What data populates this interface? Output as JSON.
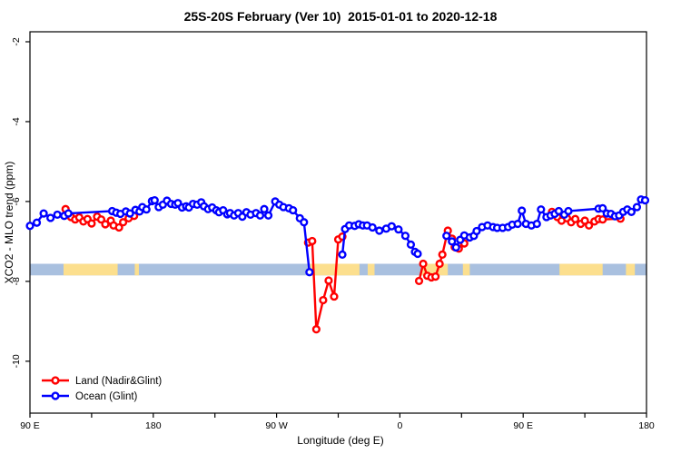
{
  "title": "25S-20S February (Ver 10)  2015-01-01 to 2020-12-18",
  "axes": {
    "x": {
      "label": "Longitude (deg E)",
      "ticks": [
        {
          "lon": 90,
          "label": "90 E"
        },
        {
          "lon": 135,
          "label": ""
        },
        {
          "lon": 180,
          "label": "180"
        },
        {
          "lon": 225,
          "label": ""
        },
        {
          "lon": 270,
          "label": "90 W"
        },
        {
          "lon": 315,
          "label": ""
        },
        {
          "lon": 360,
          "label": "0"
        },
        {
          "lon": 405,
          "label": ""
        },
        {
          "lon": 450,
          "label": "90 E"
        },
        {
          "lon": 495,
          "label": ""
        },
        {
          "lon": 540,
          "label": "180"
        }
      ]
    },
    "y": {
      "label": "XCO2 - MLO trend (ppm)",
      "ticks": [
        "-2",
        "-4",
        "-6",
        "-8",
        "-10"
      ],
      "tick_values": [
        -2,
        -4,
        -6,
        -8,
        -10
      ],
      "range": [
        -11.3,
        -1.75
      ]
    }
  },
  "legend": [
    {
      "label": "Land (Nadir&Glint)",
      "color": "#ff0000",
      "marker": "open-circle"
    },
    {
      "label": "Ocean (Glint)",
      "color": "#0000ff",
      "marker": "open-circle"
    }
  ],
  "chart_data": {
    "type": "line",
    "title": "25S-20S February (Ver 10)  2015-01-01 to 2020-12-18",
    "xlabel": "Longitude (deg E)",
    "ylabel": "XCO2 - MLO trend (ppm)",
    "x_unit": "extended longitude deg E (90 to 540, wraps 180/-180 at 180 and 0 at 360)",
    "xlim": [
      90,
      540
    ],
    "ylim": [
      -11.3,
      -1.75
    ],
    "grid": false,
    "legend_position": "bottom-left-inside",
    "land_ocean_band": {
      "y_top": -7.56,
      "y_bottom": -7.85,
      "ocean_color": "#a9c0df",
      "land_color": "#fcdf8e",
      "land_segments_lon": [
        [
          114.5,
          154
        ],
        [
          166.5,
          169.5
        ],
        [
          294.5,
          330.5
        ],
        [
          336.5,
          341.5
        ],
        [
          375.5,
          395
        ],
        [
          406,
          411
        ],
        [
          476.5,
          508
        ],
        [
          525,
          531.5
        ]
      ]
    },
    "series": [
      {
        "name": "Land (Nadir&Glint)",
        "color": "#ff0000",
        "segments": [
          [
            [
              116,
              -6.19
            ],
            [
              120,
              -6.39
            ],
            [
              123,
              -6.45
            ],
            [
              126,
              -6.4
            ],
            [
              129,
              -6.5
            ],
            [
              132,
              -6.44
            ],
            [
              135,
              -6.55
            ],
            [
              139,
              -6.38
            ],
            [
              142,
              -6.45
            ],
            [
              145,
              -6.57
            ],
            [
              149,
              -6.48
            ],
            [
              151,
              -6.6
            ],
            [
              155,
              -6.65
            ],
            [
              158,
              -6.52
            ],
            [
              162,
              -6.42
            ],
            [
              166,
              -6.36
            ]
          ],
          [
            [
              293,
              -7.03
            ],
            [
              296,
              -6.99
            ],
            [
              299,
              -9.2
            ],
            [
              304,
              -8.47
            ],
            [
              308,
              -7.98
            ],
            [
              312,
              -8.38
            ],
            [
              315,
              -6.95
            ],
            [
              318,
              -6.88
            ]
          ],
          [
            [
              374,
              -7.99
            ],
            [
              377,
              -7.56
            ],
            [
              380,
              -7.86
            ],
            [
              383,
              -7.9
            ],
            [
              386,
              -7.88
            ],
            [
              389,
              -7.56
            ],
            [
              391,
              -7.33
            ],
            [
              395,
              -6.73
            ],
            [
              398,
              -6.93
            ],
            [
              400,
              -7.14
            ],
            [
              403,
              -7.18
            ],
            [
              407,
              -7.05
            ]
          ],
          [
            [
              471,
              -6.26
            ],
            [
              475,
              -6.39
            ],
            [
              478,
              -6.48
            ],
            [
              482,
              -6.42
            ],
            [
              485,
              -6.52
            ],
            [
              488,
              -6.44
            ],
            [
              492,
              -6.56
            ],
            [
              495,
              -6.48
            ],
            [
              498,
              -6.6
            ],
            [
              502,
              -6.5
            ],
            [
              505,
              -6.44
            ],
            [
              508,
              -6.45
            ],
            [
              521,
              -6.43
            ]
          ]
        ]
      },
      {
        "name": "Ocean (Glint)",
        "color": "#0000ff",
        "segments": [
          [
            [
              90,
              -6.61
            ],
            [
              95,
              -6.53
            ],
            [
              100,
              -6.3
            ],
            [
              105,
              -6.41
            ],
            [
              110,
              -6.33
            ],
            [
              115,
              -6.36
            ],
            [
              118,
              -6.3
            ],
            [
              150,
              -6.24
            ],
            [
              153,
              -6.28
            ],
            [
              156,
              -6.31
            ],
            [
              160,
              -6.25
            ],
            [
              163,
              -6.3
            ],
            [
              167,
              -6.21
            ],
            [
              170,
              -6.25
            ],
            [
              172,
              -6.14
            ],
            [
              175,
              -6.2
            ],
            [
              179,
              -5.99
            ],
            [
              181,
              -5.97
            ],
            [
              184,
              -6.14
            ],
            [
              187,
              -6.08
            ],
            [
              190,
              -5.98
            ],
            [
              193,
              -6.06
            ],
            [
              196,
              -6.08
            ],
            [
              198,
              -6.04
            ],
            [
              201,
              -6.15
            ],
            [
              204,
              -6.12
            ],
            [
              206,
              -6.15
            ],
            [
              209,
              -6.06
            ],
            [
              212,
              -6.08
            ],
            [
              215,
              -6.02
            ],
            [
              217,
              -6.12
            ],
            [
              220,
              -6.19
            ],
            [
              223,
              -6.15
            ],
            [
              226,
              -6.22
            ],
            [
              228,
              -6.27
            ],
            [
              231,
              -6.22
            ],
            [
              234,
              -6.32
            ],
            [
              236,
              -6.29
            ],
            [
              239,
              -6.35
            ],
            [
              242,
              -6.29
            ],
            [
              245,
              -6.38
            ],
            [
              248,
              -6.27
            ],
            [
              251,
              -6.33
            ],
            [
              255,
              -6.29
            ],
            [
              258,
              -6.35
            ],
            [
              261,
              -6.19
            ],
            [
              264,
              -6.35
            ],
            [
              269,
              -6.0
            ],
            [
              272,
              -6.08
            ],
            [
              275,
              -6.14
            ],
            [
              279,
              -6.17
            ],
            [
              282,
              -6.22
            ],
            [
              287,
              -6.42
            ],
            [
              290,
              -6.52
            ],
            [
              294,
              -7.77
            ]
          ],
          [
            [
              318,
              -7.33
            ],
            [
              320,
              -6.69
            ],
            [
              323,
              -6.6
            ],
            [
              327,
              -6.61
            ],
            [
              330,
              -6.57
            ],
            [
              333,
              -6.6
            ],
            [
              336,
              -6.6
            ],
            [
              340,
              -6.65
            ],
            [
              345,
              -6.73
            ],
            [
              350,
              -6.68
            ],
            [
              354,
              -6.62
            ],
            [
              359,
              -6.7
            ],
            [
              364,
              -6.86
            ],
            [
              368,
              -7.08
            ],
            [
              371,
              -7.26
            ],
            [
              373,
              -7.31
            ]
          ],
          [
            [
              394,
              -6.86
            ],
            [
              398,
              -7.0
            ],
            [
              401,
              -7.15
            ],
            [
              404,
              -6.96
            ],
            [
              407,
              -6.85
            ],
            [
              411,
              -6.9
            ],
            [
              414,
              -6.86
            ],
            [
              416,
              -6.74
            ],
            [
              420,
              -6.64
            ],
            [
              424,
              -6.6
            ],
            [
              428,
              -6.64
            ],
            [
              431,
              -6.66
            ],
            [
              435,
              -6.66
            ],
            [
              439,
              -6.64
            ],
            [
              442,
              -6.58
            ],
            [
              446,
              -6.56
            ],
            [
              449,
              -6.23
            ],
            [
              452,
              -6.56
            ],
            [
              456,
              -6.6
            ],
            [
              460,
              -6.56
            ],
            [
              463,
              -6.2
            ],
            [
              467,
              -6.39
            ],
            [
              470,
              -6.35
            ],
            [
              473,
              -6.31
            ],
            [
              476,
              -6.24
            ],
            [
              480,
              -6.33
            ],
            [
              483,
              -6.24
            ],
            [
              505,
              -6.18
            ],
            [
              508,
              -6.17
            ],
            [
              511,
              -6.3
            ],
            [
              514,
              -6.31
            ],
            [
              517,
              -6.37
            ],
            [
              520,
              -6.35
            ],
            [
              523,
              -6.26
            ],
            [
              526,
              -6.2
            ],
            [
              529,
              -6.26
            ],
            [
              533,
              -6.14
            ],
            [
              536,
              -5.95
            ],
            [
              539,
              -5.97
            ]
          ]
        ]
      }
    ]
  }
}
